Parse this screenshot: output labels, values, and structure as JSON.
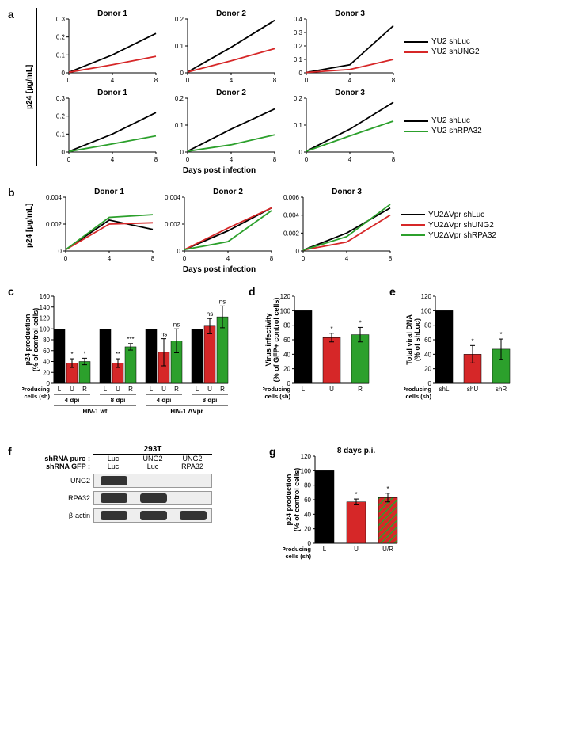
{
  "colors": {
    "black": "#000000",
    "red": "#d62728",
    "green": "#2ca02c",
    "hatched_stroke": "#2ca02c"
  },
  "panel_a": {
    "label": "a",
    "ylabel": "p24 [µg/mL]",
    "xlabel": "Days post infection",
    "xticks": [
      0,
      4,
      8
    ],
    "row1": {
      "legend": [
        {
          "label": "YU2 shLuc",
          "color": "#000000"
        },
        {
          "label": "YU2 shUNG2",
          "color": "#d62728"
        }
      ],
      "charts": [
        {
          "title": "Donor 1",
          "ylim": [
            0,
            0.3
          ],
          "yticks": [
            0,
            0.1,
            0.2,
            0.3
          ],
          "series": [
            {
              "color": "#000000",
              "points": [
                [
                  0,
                  0.003
                ],
                [
                  4,
                  0.1
                ],
                [
                  8,
                  0.22
                ]
              ]
            },
            {
              "color": "#d62728",
              "points": [
                [
                  0,
                  0.003
                ],
                [
                  4,
                  0.045
                ],
                [
                  8,
                  0.092
                ]
              ]
            }
          ]
        },
        {
          "title": "Donor 2",
          "ylim": [
            0,
            0.2
          ],
          "yticks": [
            0,
            0.1,
            0.2
          ],
          "series": [
            {
              "color": "#000000",
              "points": [
                [
                  0,
                  0.003
                ],
                [
                  4,
                  0.095
                ],
                [
                  8,
                  0.195
                ]
              ]
            },
            {
              "color": "#d62728",
              "points": [
                [
                  0,
                  0.003
                ],
                [
                  4,
                  0.045
                ],
                [
                  8,
                  0.09
                ]
              ]
            }
          ]
        },
        {
          "title": "Donor 3",
          "ylim": [
            0,
            0.4
          ],
          "yticks": [
            0,
            0.1,
            0.2,
            0.3,
            0.4
          ],
          "series": [
            {
              "color": "#000000",
              "points": [
                [
                  0,
                  0.003
                ],
                [
                  4,
                  0.06
                ],
                [
                  8,
                  0.35
                ]
              ]
            },
            {
              "color": "#d62728",
              "points": [
                [
                  0,
                  0.003
                ],
                [
                  4,
                  0.025
                ],
                [
                  8,
                  0.1
                ]
              ]
            }
          ]
        }
      ]
    },
    "row2": {
      "legend": [
        {
          "label": "YU2 shLuc",
          "color": "#000000"
        },
        {
          "label": "YU2 shRPA32",
          "color": "#2ca02c"
        }
      ],
      "charts": [
        {
          "title": "Donor 1",
          "ylim": [
            0,
            0.3
          ],
          "yticks": [
            0,
            0.1,
            0.2,
            0.3
          ],
          "series": [
            {
              "color": "#000000",
              "points": [
                [
                  0,
                  0.003
                ],
                [
                  4,
                  0.1
                ],
                [
                  8,
                  0.22
                ]
              ]
            },
            {
              "color": "#2ca02c",
              "points": [
                [
                  0,
                  0.003
                ],
                [
                  4,
                  0.045
                ],
                [
                  8,
                  0.09
                ]
              ]
            }
          ]
        },
        {
          "title": "Donor 2",
          "ylim": [
            0,
            0.2
          ],
          "yticks": [
            0,
            0.1,
            0.2
          ],
          "series": [
            {
              "color": "#000000",
              "points": [
                [
                  0,
                  0.003
                ],
                [
                  4,
                  0.085
                ],
                [
                  8,
                  0.16
                ]
              ]
            },
            {
              "color": "#2ca02c",
              "points": [
                [
                  0,
                  0.003
                ],
                [
                  4,
                  0.027
                ],
                [
                  8,
                  0.064
                ]
              ]
            }
          ]
        },
        {
          "title": "Donor 3",
          "ylim": [
            0,
            0.2
          ],
          "yticks": [
            0,
            0.1,
            0.2
          ],
          "series": [
            {
              "color": "#000000",
              "points": [
                [
                  0,
                  0.003
                ],
                [
                  4,
                  0.085
                ],
                [
                  8,
                  0.185
                ]
              ]
            },
            {
              "color": "#2ca02c",
              "points": [
                [
                  0,
                  0.003
                ],
                [
                  4,
                  0.06
                ],
                [
                  8,
                  0.115
                ]
              ]
            }
          ]
        }
      ]
    }
  },
  "panel_b": {
    "label": "b",
    "ylabel": "p24 [µg/mL]",
    "xlabel": "Days post infection",
    "xticks": [
      0,
      4,
      8
    ],
    "legend": [
      {
        "label": "YU2ΔVpr shLuc",
        "color": "#000000"
      },
      {
        "label": "YU2ΔVpr shUNG2",
        "color": "#d62728"
      },
      {
        "label": "YU2ΔVpr shRPA32",
        "color": "#2ca02c"
      }
    ],
    "charts": [
      {
        "title": "Donor 1",
        "ylim": [
          0,
          0.004
        ],
        "yticks": [
          0,
          0.002,
          0.004
        ],
        "series": [
          {
            "color": "#000000",
            "points": [
              [
                0,
                0.0001
              ],
              [
                4,
                0.0023
              ],
              [
                8,
                0.0016
              ]
            ]
          },
          {
            "color": "#d62728",
            "points": [
              [
                0,
                0.0001
              ],
              [
                4,
                0.002
              ],
              [
                8,
                0.0021
              ]
            ]
          },
          {
            "color": "#2ca02c",
            "points": [
              [
                0,
                0.0001
              ],
              [
                4,
                0.0025
              ],
              [
                8,
                0.0027
              ]
            ]
          }
        ]
      },
      {
        "title": "Donor 2",
        "ylim": [
          0,
          0.004
        ],
        "yticks": [
          0,
          0.002,
          0.004
        ],
        "series": [
          {
            "color": "#000000",
            "points": [
              [
                0,
                0.0001
              ],
              [
                4,
                0.0015
              ],
              [
                8,
                0.0032
              ]
            ]
          },
          {
            "color": "#d62728",
            "points": [
              [
                0,
                0.0001
              ],
              [
                4,
                0.0017
              ],
              [
                8,
                0.0032
              ]
            ]
          },
          {
            "color": "#2ca02c",
            "points": [
              [
                0,
                0.0001
              ],
              [
                4,
                0.0007
              ],
              [
                8,
                0.003
              ]
            ]
          }
        ]
      },
      {
        "title": "Donor 3",
        "ylim": [
          0,
          0.006
        ],
        "yticks": [
          0,
          0.002,
          0.004,
          0.006
        ],
        "series": [
          {
            "color": "#000000",
            "points": [
              [
                0,
                0.0001
              ],
              [
                4,
                0.002
              ],
              [
                8,
                0.0048
              ]
            ]
          },
          {
            "color": "#d62728",
            "points": [
              [
                0,
                0.0001
              ],
              [
                4,
                0.001
              ],
              [
                8,
                0.004
              ]
            ]
          },
          {
            "color": "#2ca02c",
            "points": [
              [
                0,
                0.0001
              ],
              [
                4,
                0.0016
              ],
              [
                8,
                0.0052
              ]
            ]
          }
        ]
      }
    ]
  },
  "panel_c": {
    "label": "c",
    "ylabel": "p24 production\n(% of control cells)",
    "ylim": [
      0,
      160
    ],
    "ytick_step": 20,
    "groups": [
      {
        "over": "HIV-1 wt",
        "sub": "4 dpi",
        "bars": [
          {
            "label": "L",
            "val": 100,
            "color": "#000000",
            "sig": ""
          },
          {
            "label": "U",
            "val": 37,
            "err": 8,
            "color": "#d62728",
            "sig": "*"
          },
          {
            "label": "R",
            "val": 40,
            "err": 6,
            "color": "#2ca02c",
            "sig": "*"
          }
        ]
      },
      {
        "over": "HIV-1 wt",
        "sub": "8 dpi",
        "bars": [
          {
            "label": "L",
            "val": 100,
            "color": "#000000",
            "sig": ""
          },
          {
            "label": "U",
            "val": 37,
            "err": 8,
            "color": "#d62728",
            "sig": "**"
          },
          {
            "label": "R",
            "val": 67,
            "err": 6,
            "color": "#2ca02c",
            "sig": "***"
          }
        ]
      },
      {
        "over": "HIV-1 ΔVpr",
        "sub": "4 dpi",
        "bars": [
          {
            "label": "L",
            "val": 100,
            "color": "#000000",
            "sig": ""
          },
          {
            "label": "U",
            "val": 57,
            "err": 25,
            "color": "#d62728",
            "sig": "ns"
          },
          {
            "label": "R",
            "val": 78,
            "err": 22,
            "color": "#2ca02c",
            "sig": "ns"
          }
        ]
      },
      {
        "over": "HIV-1 ΔVpr",
        "sub": "8 dpi",
        "bars": [
          {
            "label": "L",
            "val": 100,
            "color": "#000000",
            "sig": ""
          },
          {
            "label": "U",
            "val": 105,
            "err": 14,
            "color": "#d62728",
            "sig": "ns"
          },
          {
            "label": "R",
            "val": 122,
            "err": 20,
            "color": "#2ca02c",
            "sig": "ns"
          }
        ]
      }
    ],
    "producing_label": "Producing\ncells (sh)"
  },
  "panel_d": {
    "label": "d",
    "ylabel": "Virus infectivity\n(% of GFP+ control cells)",
    "ylim": [
      0,
      120
    ],
    "ytick_step": 20,
    "producing_label": "Producing\ncells (sh)",
    "bars": [
      {
        "label": "L",
        "val": 100,
        "color": "#000000",
        "sig": ""
      },
      {
        "label": "U",
        "val": 63,
        "err": 6,
        "color": "#d62728",
        "sig": "*"
      },
      {
        "label": "R",
        "val": 67,
        "err": 10,
        "color": "#2ca02c",
        "sig": "*"
      }
    ]
  },
  "panel_e": {
    "label": "e",
    "ylabel": "Total viral DNA\n(% of shLuc)",
    "ylim": [
      0,
      120
    ],
    "ytick_step": 20,
    "producing_label": "Producing\ncells (sh)",
    "bars": [
      {
        "label": "shL",
        "val": 100,
        "color": "#000000",
        "sig": ""
      },
      {
        "label": "shU",
        "val": 40,
        "err": 12,
        "color": "#d62728",
        "sig": "*"
      },
      {
        "label": "shR",
        "val": 47,
        "err": 14,
        "color": "#2ca02c",
        "sig": "*"
      }
    ]
  },
  "panel_f": {
    "label": "f",
    "header": "293T",
    "rows_top": [
      {
        "label": "shRNA puro :",
        "vals": [
          "Luc",
          "UNG2",
          "UNG2"
        ]
      },
      {
        "label": "shRNA GFP :",
        "vals": [
          "Luc",
          "Luc",
          "RPA32"
        ]
      }
    ],
    "blots": [
      {
        "label": "UNG2",
        "bands": [
          true,
          false,
          false
        ]
      },
      {
        "label": "RPA32",
        "bands": [
          true,
          true,
          false
        ]
      },
      {
        "label": "β-actin",
        "bands": [
          true,
          true,
          true
        ]
      }
    ]
  },
  "panel_g": {
    "label": "g",
    "title": "8 days p.i.",
    "ylabel": "p24 production\n(% of control cells)",
    "ylim": [
      0,
      120
    ],
    "ytick_step": 20,
    "producing_label": "Producing\ncells (sh)",
    "bars": [
      {
        "label": "L",
        "val": 100,
        "color": "#000000",
        "sig": ""
      },
      {
        "label": "U",
        "val": 57,
        "err": 4,
        "color": "#d62728",
        "sig": "*"
      },
      {
        "label": "U/R",
        "val": 63,
        "err": 6,
        "color": "#d62728",
        "hatched": true,
        "hatch_color": "#2ca02c",
        "sig": "*"
      }
    ]
  }
}
